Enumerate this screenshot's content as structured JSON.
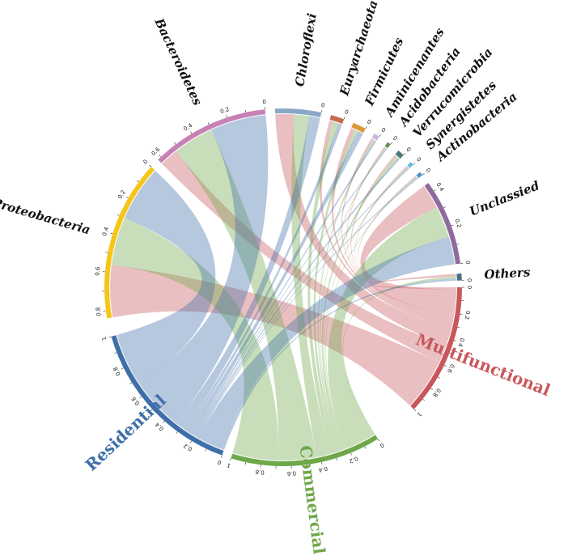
{
  "chart_data": {
    "type": "chord",
    "title": "",
    "groups": [
      {
        "name": "Multifunctional",
        "color": "#c8575c"
      },
      {
        "name": "Commercial",
        "color": "#6fa84a"
      },
      {
        "name": "Residential",
        "color": "#3f6fa8"
      }
    ],
    "taxa": [
      {
        "name": "Proteobacteria",
        "color": "#f5c518",
        "values": [
          0.28,
          0.26,
          0.3
        ]
      },
      {
        "name": "Bacteroidetes",
        "color": "#c682b4",
        "values": [
          0.1,
          0.22,
          0.3
        ]
      },
      {
        "name": "Chloroflexi",
        "color": "#8aa8c6",
        "values": [
          0.1,
          0.08,
          0.06
        ]
      },
      {
        "name": "Euryarchaeota",
        "color": "#c56b4b",
        "values": [
          0.02,
          0.03,
          0.02
        ]
      },
      {
        "name": "Firmicutes",
        "color": "#d99a3c",
        "values": [
          0.02,
          0.02,
          0.03
        ]
      },
      {
        "name": "Aminicenantes",
        "color": "#c8b8e0",
        "values": [
          0.01,
          0.01,
          0.01
        ]
      },
      {
        "name": "Acidobacteria",
        "color": "#6b8e4e",
        "values": [
          0.005,
          0.005,
          0.005
        ]
      },
      {
        "name": "Verrucomicrobia",
        "color": "#4a7a7a",
        "values": [
          0.01,
          0.015,
          0.01
        ]
      },
      {
        "name": "Synergistetes",
        "color": "#5bc0de",
        "values": [
          0.005,
          0.005,
          0.005
        ]
      },
      {
        "name": "Actinobacteria",
        "color": "#4a90c8",
        "values": [
          0.005,
          0.005,
          0.005
        ]
      },
      {
        "name": "Unclassied",
        "color": "#8e6b9e",
        "values": [
          0.13,
          0.17,
          0.15
        ]
      },
      {
        "name": "Others",
        "color": "#4a6f8a",
        "values": [
          0.012,
          0.012,
          0.012
        ]
      }
    ]
  }
}
